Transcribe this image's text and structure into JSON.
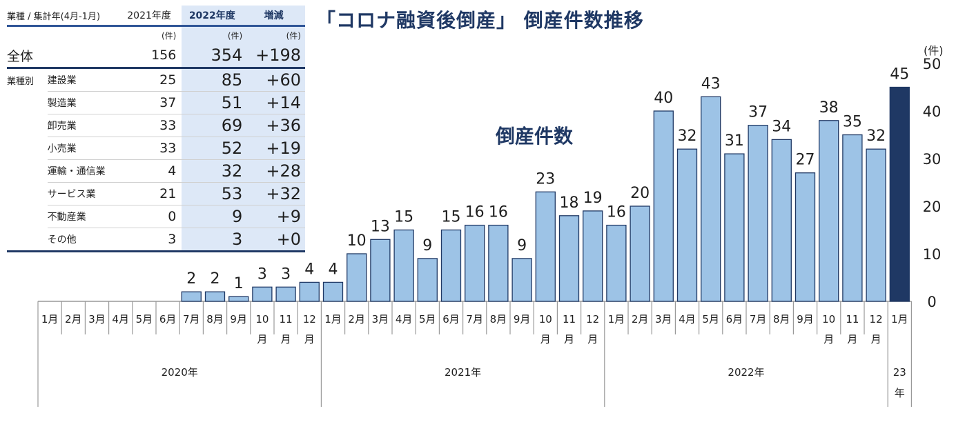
{
  "chart_data": {
    "type": "bar",
    "title": "「コロナ融資後倒産」 倒産件数推移",
    "series_label": "倒産件数",
    "y_unit": "(件)",
    "ylim": [
      0,
      50
    ],
    "yticks": [
      0,
      10,
      20,
      30,
      40,
      50
    ],
    "grid": false,
    "categories": [
      {
        "year": "2020年",
        "month": "1月"
      },
      {
        "year": "2020年",
        "month": "2月"
      },
      {
        "year": "2020年",
        "month": "3月"
      },
      {
        "year": "2020年",
        "month": "4月"
      },
      {
        "year": "2020年",
        "month": "5月"
      },
      {
        "year": "2020年",
        "month": "6月"
      },
      {
        "year": "2020年",
        "month": "7月"
      },
      {
        "year": "2020年",
        "month": "8月"
      },
      {
        "year": "2020年",
        "month": "9月"
      },
      {
        "year": "2020年",
        "month": "10月"
      },
      {
        "year": "2020年",
        "month": "11月"
      },
      {
        "year": "2020年",
        "month": "12月"
      },
      {
        "year": "2021年",
        "month": "1月"
      },
      {
        "year": "2021年",
        "month": "2月"
      },
      {
        "year": "2021年",
        "month": "3月"
      },
      {
        "year": "2021年",
        "month": "4月"
      },
      {
        "year": "2021年",
        "month": "5月"
      },
      {
        "year": "2021年",
        "month": "6月"
      },
      {
        "year": "2021年",
        "month": "7月"
      },
      {
        "year": "2021年",
        "month": "8月"
      },
      {
        "year": "2021年",
        "month": "9月"
      },
      {
        "year": "2021年",
        "month": "10月"
      },
      {
        "year": "2021年",
        "month": "11月"
      },
      {
        "year": "2021年",
        "month": "12月"
      },
      {
        "year": "2022年",
        "month": "1月"
      },
      {
        "year": "2022年",
        "month": "2月"
      },
      {
        "year": "2022年",
        "month": "3月"
      },
      {
        "year": "2022年",
        "month": "4月"
      },
      {
        "year": "2022年",
        "month": "5月"
      },
      {
        "year": "2022年",
        "month": "6月"
      },
      {
        "year": "2022年",
        "month": "7月"
      },
      {
        "year": "2022年",
        "month": "8月"
      },
      {
        "year": "2022年",
        "month": "9月"
      },
      {
        "year": "2022年",
        "month": "10月"
      },
      {
        "year": "2022年",
        "month": "11月"
      },
      {
        "year": "2022年",
        "month": "12月"
      },
      {
        "year": "23年",
        "month": "1月"
      }
    ],
    "values": [
      null,
      null,
      null,
      null,
      null,
      null,
      2,
      2,
      1,
      3,
      3,
      4,
      4,
      10,
      13,
      15,
      9,
      15,
      16,
      16,
      9,
      23,
      18,
      19,
      16,
      20,
      40,
      32,
      43,
      31,
      37,
      34,
      27,
      38,
      35,
      32,
      45
    ],
    "year_groups": [
      {
        "label": "2020年",
        "count": 12
      },
      {
        "label": "2021年",
        "count": 12
      },
      {
        "label": "2022年",
        "count": 12
      },
      {
        "label": "23年",
        "count": 1
      }
    ],
    "highlight_last": true,
    "colors": {
      "bar": "#9dc3e6",
      "bar_highlight": "#1f3864",
      "stroke": "#1f3864",
      "text": "#1f1f1f",
      "axis": "#999999"
    }
  },
  "table": {
    "header": {
      "category": "業種 / 集計年(4月-1月)",
      "col_2021": "2021年度",
      "col_2022": "2022年度",
      "col_diff": "増減"
    },
    "unit_row": {
      "u1": "(件)",
      "u2": "(件)",
      "u3": "(件)"
    },
    "total": {
      "label": "全体",
      "v2021": "156",
      "v2022": "354",
      "diff": "+198"
    },
    "group_label": "業種別",
    "rows": [
      {
        "label": "建設業",
        "v2021": "25",
        "v2022": "85",
        "diff": "+60"
      },
      {
        "label": "製造業",
        "v2021": "37",
        "v2022": "51",
        "diff": "+14"
      },
      {
        "label": "卸売業",
        "v2021": "33",
        "v2022": "69",
        "diff": "+36"
      },
      {
        "label": "小売業",
        "v2021": "33",
        "v2022": "52",
        "diff": "+19"
      },
      {
        "label": "運輸・通信業",
        "v2021": "4",
        "v2022": "32",
        "diff": "+28"
      },
      {
        "label": "サービス業",
        "v2021": "21",
        "v2022": "53",
        "diff": "+32"
      },
      {
        "label": "不動産業",
        "v2021": "0",
        "v2022": "9",
        "diff": "+9"
      },
      {
        "label": "その他",
        "v2021": "3",
        "v2022": "3",
        "diff": "+0"
      }
    ]
  }
}
